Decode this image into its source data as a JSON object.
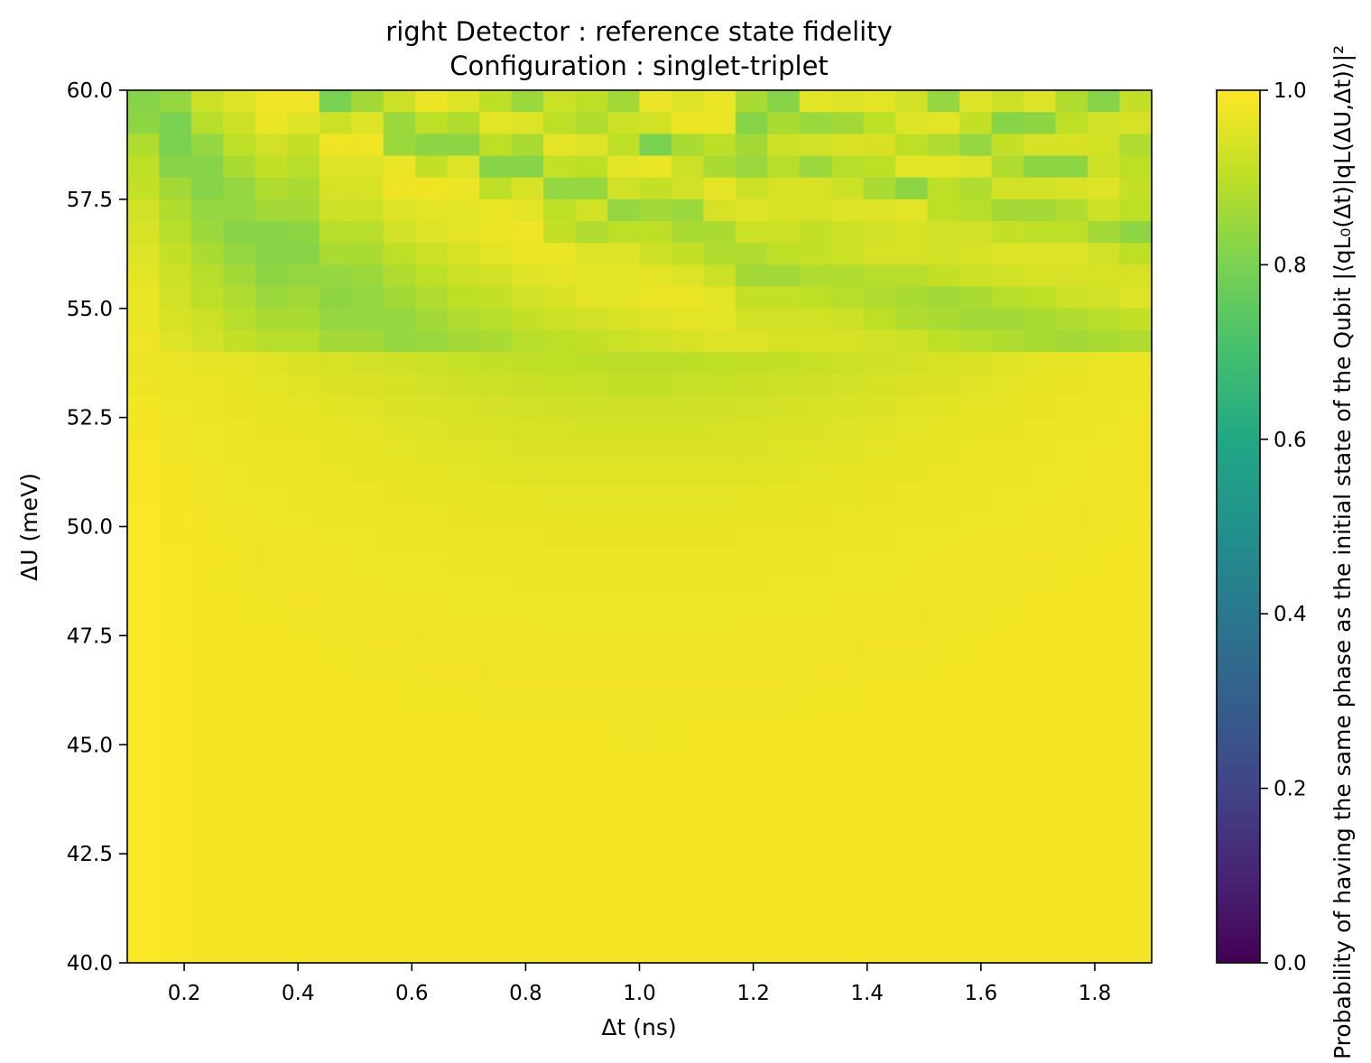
{
  "chart_data": {
    "type": "heatmap",
    "title": "right Detector : reference state fidelity",
    "subtitle": "Configuration : singlet-triplet",
    "xlabel": "Δt (ns)",
    "ylabel": "ΔU (meV)",
    "colorbar_label": "Probability of having the same phase as the initial state of the Qubit |⟨qL₀(Δt)|qL(ΔU,Δt)⟩|²",
    "colormap": "viridis",
    "x_range": [
      0.1,
      1.9
    ],
    "y_range": [
      40.0,
      60.0
    ],
    "color_range": [
      0.0,
      1.0
    ],
    "x_ticks": [
      "0.2",
      "0.4",
      "0.6",
      "0.8",
      "1.0",
      "1.2",
      "1.4",
      "1.6",
      "1.8"
    ],
    "y_ticks": [
      "40.0",
      "42.5",
      "45.0",
      "47.5",
      "50.0",
      "52.5",
      "55.0",
      "57.5",
      "60.0"
    ],
    "color_ticks": [
      "0.0",
      "0.2",
      "0.4",
      "0.6",
      "0.8",
      "1.0"
    ],
    "grid": false,
    "grid_size": {
      "columns": 32,
      "rows": 40
    },
    "top_rows_from_60meV": [
      [
        0.82,
        0.84,
        0.92,
        0.95,
        0.98,
        0.98,
        0.8,
        0.86,
        0.92,
        0.97,
        0.95,
        0.9,
        0.85,
        0.92,
        0.9,
        0.86,
        0.97,
        0.95,
        0.97,
        0.87,
        0.82,
        0.96,
        0.95,
        0.96,
        0.93,
        0.84,
        0.95,
        0.92,
        0.95,
        0.88,
        0.82,
        0.91
      ],
      [
        0.83,
        0.8,
        0.89,
        0.92,
        0.97,
        0.95,
        0.92,
        0.95,
        0.85,
        0.9,
        0.88,
        0.96,
        0.95,
        0.9,
        0.88,
        0.92,
        0.93,
        0.97,
        0.97,
        0.82,
        0.87,
        0.85,
        0.86,
        0.9,
        0.95,
        0.96,
        0.91,
        0.82,
        0.83,
        0.9,
        0.93,
        0.94
      ],
      [
        0.88,
        0.8,
        0.84,
        0.9,
        0.93,
        0.91,
        0.98,
        0.98,
        0.85,
        0.83,
        0.83,
        0.9,
        0.87,
        0.96,
        0.95,
        0.9,
        0.8,
        0.87,
        0.9,
        0.86,
        0.92,
        0.93,
        0.94,
        0.94,
        0.9,
        0.88,
        0.84,
        0.91,
        0.94,
        0.94,
        0.93,
        0.88
      ],
      [
        0.9,
        0.82,
        0.82,
        0.87,
        0.91,
        0.89,
        0.95,
        0.95,
        0.97,
        0.91,
        0.95,
        0.82,
        0.82,
        0.91,
        0.9,
        0.96,
        0.97,
        0.92,
        0.87,
        0.85,
        0.89,
        0.85,
        0.89,
        0.9,
        0.96,
        0.96,
        0.95,
        0.88,
        0.83,
        0.83,
        0.92,
        0.9
      ],
      [
        0.91,
        0.86,
        0.82,
        0.84,
        0.88,
        0.87,
        0.94,
        0.94,
        0.98,
        0.98,
        0.97,
        0.9,
        0.94,
        0.84,
        0.84,
        0.93,
        0.91,
        0.93,
        0.96,
        0.92,
        0.94,
        0.94,
        0.92,
        0.87,
        0.83,
        0.9,
        0.88,
        0.93,
        0.93,
        0.94,
        0.95,
        0.91
      ],
      [
        0.93,
        0.88,
        0.84,
        0.84,
        0.86,
        0.86,
        0.92,
        0.92,
        0.95,
        0.96,
        0.96,
        0.97,
        0.96,
        0.9,
        0.93,
        0.84,
        0.86,
        0.85,
        0.94,
        0.95,
        0.94,
        0.94,
        0.95,
        0.95,
        0.96,
        0.9,
        0.89,
        0.86,
        0.86,
        0.88,
        0.92,
        0.9
      ],
      [
        0.94,
        0.89,
        0.85,
        0.82,
        0.82,
        0.83,
        0.89,
        0.89,
        0.93,
        0.95,
        0.96,
        0.97,
        0.98,
        0.91,
        0.88,
        0.9,
        0.9,
        0.87,
        0.87,
        0.92,
        0.92,
        0.91,
        0.92,
        0.93,
        0.94,
        0.93,
        0.93,
        0.91,
        0.9,
        0.9,
        0.86,
        0.83
      ],
      [
        0.95,
        0.91,
        0.87,
        0.84,
        0.82,
        0.82,
        0.87,
        0.87,
        0.9,
        0.92,
        0.94,
        0.96,
        0.97,
        0.97,
        0.95,
        0.95,
        0.92,
        0.91,
        0.88,
        0.88,
        0.9,
        0.91,
        0.92,
        0.94,
        0.94,
        0.93,
        0.94,
        0.95,
        0.95,
        0.95,
        0.93,
        0.9
      ],
      [
        0.96,
        0.92,
        0.89,
        0.86,
        0.83,
        0.84,
        0.84,
        0.85,
        0.88,
        0.9,
        0.92,
        0.93,
        0.95,
        0.96,
        0.96,
        0.96,
        0.96,
        0.95,
        0.92,
        0.86,
        0.86,
        0.88,
        0.88,
        0.89,
        0.89,
        0.91,
        0.92,
        0.93,
        0.94,
        0.94,
        0.94,
        0.94
      ],
      [
        0.97,
        0.93,
        0.9,
        0.88,
        0.85,
        0.86,
        0.83,
        0.84,
        0.86,
        0.88,
        0.9,
        0.91,
        0.93,
        0.94,
        0.96,
        0.96,
        0.97,
        0.97,
        0.96,
        0.91,
        0.91,
        0.9,
        0.89,
        0.88,
        0.87,
        0.86,
        0.87,
        0.89,
        0.9,
        0.92,
        0.93,
        0.95
      ],
      [
        0.97,
        0.94,
        0.92,
        0.89,
        0.87,
        0.87,
        0.84,
        0.84,
        0.84,
        0.86,
        0.88,
        0.89,
        0.91,
        0.92,
        0.93,
        0.94,
        0.95,
        0.96,
        0.96,
        0.93,
        0.93,
        0.93,
        0.92,
        0.9,
        0.88,
        0.87,
        0.86,
        0.86,
        0.87,
        0.88,
        0.89,
        0.91
      ],
      [
        0.98,
        0.95,
        0.93,
        0.91,
        0.89,
        0.89,
        0.86,
        0.86,
        0.84,
        0.85,
        0.86,
        0.87,
        0.89,
        0.9,
        0.91,
        0.92,
        0.93,
        0.94,
        0.95,
        0.95,
        0.94,
        0.94,
        0.94,
        0.93,
        0.92,
        0.9,
        0.89,
        0.88,
        0.87,
        0.86,
        0.87,
        0.88
      ]
    ]
  }
}
